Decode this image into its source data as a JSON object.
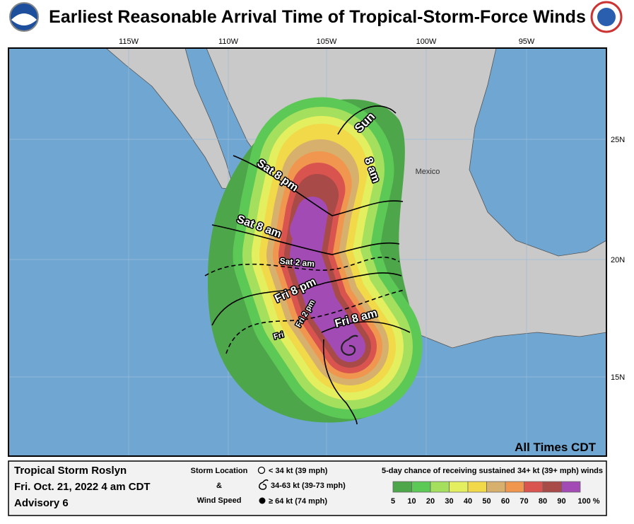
{
  "header": {
    "title": "Earliest Reasonable Arrival Time of Tropical-Storm-Force Winds"
  },
  "map": {
    "lon_labels": [
      "115W",
      "110W",
      "105W",
      "100W",
      "95W"
    ],
    "lat_labels": [
      "25N",
      "20N",
      "15N"
    ],
    "country_label": "Mexico",
    "time_note": "All Times CDT",
    "contour_labels": [
      "Sun",
      "8 am",
      "Sat 8 pm",
      "Sat 8 am",
      "Sat 2 am",
      "Fri 8 pm",
      "Fri 2 pm",
      "Fri 8 am",
      "Fri"
    ]
  },
  "footer": {
    "storm": {
      "name": "Tropical Storm Roslyn",
      "time": "Fri. Oct. 21, 2022  4 am CDT",
      "advisory": "Advisory 6"
    },
    "key": {
      "title1": "Storm Location",
      "amp": "&",
      "title2": "Wind Speed",
      "items": [
        "< 34 kt (39 mph)",
        "34-63 kt (39-73 mph)",
        "≥ 64 kt (74 mph)"
      ]
    },
    "probability": {
      "title": "5-day chance of receiving sustained 34+ kt (39+ mph) winds",
      "labels": [
        "5",
        "10",
        "20",
        "30",
        "40",
        "50",
        "60",
        "70",
        "80",
        "90",
        "100 %"
      ],
      "colors": [
        "#4ea64a",
        "#5cc855",
        "#a4e05e",
        "#e3ef5e",
        "#f2d949",
        "#d6b06c",
        "#f0964e",
        "#d9534f",
        "#a84a48",
        "#a24bb4"
      ]
    }
  }
}
